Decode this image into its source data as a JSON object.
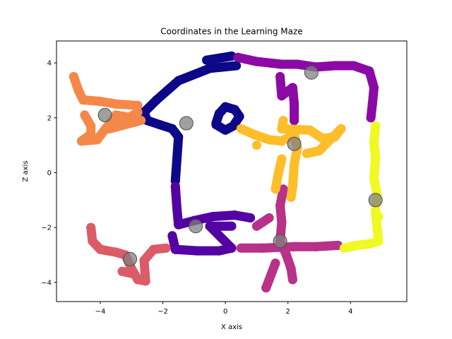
{
  "chart_data": {
    "type": "scatter",
    "title": "Coordinates in the Learning Maze",
    "xlabel": "X axis",
    "ylabel": "Z axis",
    "xlim": [
      -5.4,
      5.8
    ],
    "ylim": [
      -4.7,
      4.8
    ],
    "xticks": [
      -4,
      -2,
      0,
      2,
      4
    ],
    "yticks": [
      -4,
      -2,
      0,
      2,
      4
    ],
    "xtick_labels": [
      "−4",
      "−2",
      "0",
      "2",
      "4"
    ],
    "ytick_labels": [
      "−4",
      "−2",
      "0",
      "2",
      "4"
    ],
    "grid": false,
    "colormap": "plasma",
    "series": [
      {
        "color": "#0d0887",
        "points": [
          [
            0.35,
            3.9
          ],
          [
            -0.5,
            3.8
          ],
          [
            -1.5,
            3.35
          ],
          [
            -2.2,
            2.65
          ],
          [
            -2.6,
            2.2
          ],
          [
            -2.5,
            1.9
          ],
          [
            -2.1,
            1.75
          ],
          [
            -1.7,
            1.6
          ],
          [
            -1.5,
            1.3
          ],
          [
            -1.55,
            0.5
          ],
          [
            -1.6,
            -0.3
          ],
          [
            0.2,
            4.25
          ],
          [
            -0.6,
            4.1
          ]
        ]
      },
      {
        "color": "#0d0887",
        "points": [
          [
            -0.3,
            1.8
          ],
          [
            -0.2,
            2.15
          ],
          [
            0,
            2.4
          ],
          [
            0.3,
            2.3
          ],
          [
            0.45,
            2.05
          ],
          [
            0.25,
            1.7
          ],
          [
            0.0,
            1.55
          ],
          [
            -0.3,
            1.75
          ]
        ]
      },
      {
        "color": "#5402a3",
        "points": [
          [
            -1.6,
            -0.5
          ],
          [
            -1.55,
            -1.3
          ],
          [
            -1.5,
            -1.9
          ],
          [
            -1.0,
            -1.75
          ],
          [
            -0.4,
            -1.6
          ],
          [
            0.3,
            -1.55
          ],
          [
            0.8,
            -1.65
          ],
          [
            -1.7,
            -2.3
          ],
          [
            -1.6,
            -2.8
          ],
          [
            -0.9,
            -2.85
          ],
          [
            -0.2,
            -2.85
          ],
          [
            0.2,
            -2.75
          ],
          [
            -0.5,
            -1.95
          ],
          [
            0.2,
            -1.95
          ]
        ]
      },
      {
        "color": "#8b0aa5",
        "points": [
          [
            0.4,
            4.2
          ],
          [
            1.0,
            4.05
          ],
          [
            1.8,
            3.95
          ],
          [
            2.3,
            3.95
          ],
          [
            2.9,
            3.85
          ],
          [
            3.5,
            3.9
          ],
          [
            4.1,
            3.9
          ],
          [
            4.6,
            3.7
          ],
          [
            4.75,
            3.1
          ],
          [
            4.7,
            2.5
          ],
          [
            4.65,
            2.0
          ],
          [
            1.75,
            3.5
          ],
          [
            1.8,
            2.8
          ],
          [
            2.15,
            3.1
          ],
          [
            2.2,
            2.5
          ],
          [
            2.2,
            1.9
          ]
        ]
      },
      {
        "color": "#b83289",
        "points": [
          [
            1.85,
            -0.6
          ],
          [
            1.75,
            -1.2
          ],
          [
            1.8,
            -1.8
          ],
          [
            1.75,
            -2.5
          ],
          [
            1.95,
            -3.0
          ],
          [
            2.1,
            -3.5
          ],
          [
            2.15,
            -3.9
          ],
          [
            0.5,
            -2.75
          ],
          [
            1.2,
            -2.75
          ],
          [
            2.2,
            -2.7
          ],
          [
            2.9,
            -2.7
          ],
          [
            3.6,
            -2.65
          ],
          [
            1.4,
            -1.65
          ],
          [
            1.0,
            -1.95
          ],
          [
            1.6,
            -3.3
          ],
          [
            1.3,
            -4.2
          ]
        ]
      },
      {
        "color": "#db5c68",
        "points": [
          [
            -4.3,
            -2.0
          ],
          [
            -4.25,
            -2.5
          ],
          [
            -4.0,
            -2.8
          ],
          [
            -3.5,
            -2.9
          ],
          [
            -3.2,
            -3.0
          ],
          [
            -3.0,
            -3.5
          ],
          [
            -2.8,
            -3.9
          ],
          [
            -2.55,
            -3.95
          ],
          [
            -2.6,
            -3.2
          ],
          [
            -2.3,
            -2.8
          ],
          [
            -1.9,
            -2.75
          ],
          [
            -3.3,
            -3.6
          ],
          [
            -2.9,
            -3.7
          ]
        ]
      },
      {
        "color": "#f48849",
        "points": [
          [
            -4.85,
            3.5
          ],
          [
            -4.7,
            3.0
          ],
          [
            -4.55,
            2.65
          ],
          [
            -4.0,
            2.6
          ],
          [
            -3.5,
            2.5
          ],
          [
            -2.8,
            2.45
          ],
          [
            -4.5,
            2.1
          ],
          [
            -4.3,
            1.7
          ],
          [
            -4.3,
            1.4
          ],
          [
            -4.6,
            1.15
          ],
          [
            -4.1,
            1.2
          ],
          [
            -3.5,
            2.1
          ],
          [
            -3.0,
            2.0
          ],
          [
            -2.7,
            1.9
          ],
          [
            -3.7,
            1.6
          ],
          [
            -2.8,
            2.2
          ]
        ]
      },
      {
        "color": "#febd2a",
        "points": [
          [
            0.5,
            1.6
          ],
          [
            0.9,
            1.4
          ],
          [
            1.4,
            1.2
          ],
          [
            1.8,
            1.15
          ],
          [
            2.2,
            1.4
          ],
          [
            2.3,
            0.9
          ],
          [
            2.2,
            0.3
          ],
          [
            2.15,
            -0.5
          ],
          [
            2.1,
            -0.9
          ],
          [
            1.8,
            0.5
          ],
          [
            1.7,
            0
          ],
          [
            1.6,
            -0.6
          ],
          [
            1.85,
            1.9
          ],
          [
            1.8,
            1.6
          ],
          [
            2.7,
            1.55
          ],
          [
            3.1,
            1.25
          ],
          [
            3.5,
            1.3
          ],
          [
            3.7,
            1.6
          ],
          [
            3.0,
            0.8
          ],
          [
            2.6,
            0.7
          ],
          [
            1.0,
            1.0
          ]
        ]
      },
      {
        "color": "#f0f921",
        "points": [
          [
            4.8,
            1.7
          ],
          [
            4.75,
            1.1
          ],
          [
            4.8,
            0.5
          ],
          [
            4.75,
            -0.2
          ],
          [
            4.85,
            -0.8
          ],
          [
            4.8,
            -1.4
          ],
          [
            4.85,
            -2.0
          ],
          [
            4.9,
            -2.5
          ],
          [
            4.6,
            -2.6
          ],
          [
            4.2,
            -2.65
          ],
          [
            3.8,
            -2.75
          ],
          [
            4.9,
            -1.6
          ]
        ]
      }
    ],
    "markers": [
      {
        "x": 2.75,
        "y": 3.65,
        "color": "#555555"
      },
      {
        "x": -3.85,
        "y": 2.1,
        "color": "#3a1208"
      },
      {
        "x": -1.25,
        "y": 1.8,
        "color": "#6e6e6e"
      },
      {
        "x": 2.2,
        "y": 1.05,
        "color": "#5f4d2a"
      },
      {
        "x": 4.8,
        "y": -1.0,
        "color": "#55580f"
      },
      {
        "x": -0.95,
        "y": -1.95,
        "color": "#4f4050"
      },
      {
        "x": 1.75,
        "y": -2.5,
        "color": "#4a1630"
      },
      {
        "x": -3.05,
        "y": -3.15,
        "color": "#3c1216"
      }
    ]
  }
}
